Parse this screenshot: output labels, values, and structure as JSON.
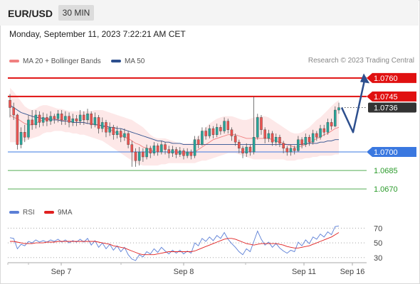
{
  "header": {
    "pair": "EUR/USD",
    "timeframe": "30 MIN"
  },
  "timestamp": "Monday, September 11, 2023 7:22:21 AM CET",
  "legend": {
    "bollinger": {
      "label": "MA 20 + Bollinger Bands",
      "color": "#f08080"
    },
    "ma50": {
      "label": "MA 50",
      "color": "#2d4f8e"
    }
  },
  "credit": "Research © 2023 Trading Central",
  "rsi_legend": {
    "rsi": {
      "label": "RSI",
      "color": "#5b7fd6"
    },
    "ma9": {
      "label": "9MA",
      "color": "#e02020"
    }
  },
  "chart_data": {
    "type": "candlestick",
    "y_range": [
      1.0662,
      1.0768
    ],
    "levels": [
      {
        "value": 1.076,
        "label": "1.0760",
        "color": "#e01010",
        "style": "resistance"
      },
      {
        "value": 1.0745,
        "label": "1.0745",
        "color": "#e01010",
        "style": "resistance"
      },
      {
        "value": 1.0736,
        "label": "1.0736",
        "color": "#333333",
        "style": "last-price"
      },
      {
        "value": 1.07,
        "label": "1.0700",
        "color": "#3a78e0",
        "style": "pivot"
      },
      {
        "value": 1.0685,
        "label": "1.0685",
        "color": "#2a9a2a",
        "style": "support"
      },
      {
        "value": 1.067,
        "label": "1.0670",
        "color": "#2a9a2a",
        "style": "support"
      }
    ],
    "x_ticks": [
      "Sep 7",
      "Sep 8",
      "Sep 11",
      "Sep 16"
    ],
    "candles": [
      [
        1.0742,
        1.0736,
        1.0747,
        1.0728
      ],
      [
        1.0736,
        1.073,
        1.074,
        1.0726
      ],
      [
        1.073,
        1.0706,
        1.0731,
        1.0702
      ],
      [
        1.0706,
        1.0716,
        1.072,
        1.0703
      ],
      [
        1.0716,
        1.0712,
        1.0722,
        1.0708
      ],
      [
        1.0712,
        1.0726,
        1.073,
        1.071
      ],
      [
        1.0726,
        1.0722,
        1.0734,
        1.0718
      ],
      [
        1.0722,
        1.073,
        1.0734,
        1.0719
      ],
      [
        1.073,
        1.0724,
        1.0733,
        1.072
      ],
      [
        1.0724,
        1.0728,
        1.0732,
        1.0721
      ],
      [
        1.0728,
        1.0725,
        1.0731,
        1.0721
      ],
      [
        1.0725,
        1.0729,
        1.0733,
        1.0722
      ],
      [
        1.0729,
        1.0727,
        1.0731,
        1.0723
      ],
      [
        1.0727,
        1.0731,
        1.0734,
        1.0724
      ],
      [
        1.0731,
        1.0726,
        1.0734,
        1.0722
      ],
      [
        1.0726,
        1.0729,
        1.0733,
        1.0722
      ],
      [
        1.0729,
        1.0724,
        1.0732,
        1.072
      ],
      [
        1.0724,
        1.0727,
        1.0731,
        1.0721
      ],
      [
        1.0727,
        1.0725,
        1.073,
        1.0721
      ],
      [
        1.0725,
        1.073,
        1.0734,
        1.0722
      ],
      [
        1.073,
        1.0726,
        1.0733,
        1.0722
      ],
      [
        1.0726,
        1.0731,
        1.0735,
        1.0723
      ],
      [
        1.0731,
        1.0722,
        1.0733,
        1.0719
      ],
      [
        1.0722,
        1.0728,
        1.0732,
        1.072
      ],
      [
        1.0728,
        1.0719,
        1.073,
        1.0715
      ],
      [
        1.0719,
        1.0724,
        1.0728,
        1.0716
      ],
      [
        1.0724,
        1.0716,
        1.0726,
        1.0712
      ],
      [
        1.0716,
        1.072,
        1.0724,
        1.0713
      ],
      [
        1.072,
        1.0714,
        1.0722,
        1.071
      ],
      [
        1.0714,
        1.0717,
        1.0721,
        1.0711
      ],
      [
        1.0717,
        1.0712,
        1.0719,
        1.0708
      ],
      [
        1.0712,
        1.0715,
        1.0719,
        1.0709
      ],
      [
        1.0715,
        1.0706,
        1.0717,
        1.0703
      ],
      [
        1.0706,
        1.07,
        1.0709,
        1.0688
      ],
      [
        1.07,
        1.0693,
        1.0703,
        1.0688
      ],
      [
        1.0693,
        1.07,
        1.0704,
        1.0689
      ],
      [
        1.07,
        1.0696,
        1.0703,
        1.0692
      ],
      [
        1.0696,
        1.0703,
        1.0706,
        1.0694
      ],
      [
        1.0703,
        1.0699,
        1.0705,
        1.0695
      ],
      [
        1.0699,
        1.0705,
        1.0708,
        1.0697
      ],
      [
        1.0705,
        1.07,
        1.0707,
        1.0697
      ],
      [
        1.07,
        1.0706,
        1.0709,
        1.0698
      ],
      [
        1.0706,
        1.0702,
        1.0708,
        1.0698
      ],
      [
        1.0702,
        1.0699,
        1.0705,
        1.0695
      ],
      [
        1.0699,
        1.0702,
        1.0705,
        1.0696
      ],
      [
        1.0702,
        1.0698,
        1.0704,
        1.0695
      ],
      [
        1.0698,
        1.0701,
        1.0704,
        1.0696
      ],
      [
        1.0701,
        1.0697,
        1.0703,
        1.0694
      ],
      [
        1.0697,
        1.07,
        1.0703,
        1.0695
      ],
      [
        1.07,
        1.0697,
        1.0702,
        1.0694
      ],
      [
        1.0697,
        1.071,
        1.0713,
        1.0695
      ],
      [
        1.071,
        1.0706,
        1.0713,
        1.0703
      ],
      [
        1.0706,
        1.0717,
        1.072,
        1.0705
      ],
      [
        1.0717,
        1.0713,
        1.072,
        1.071
      ],
      [
        1.0713,
        1.0719,
        1.0722,
        1.0711
      ],
      [
        1.0719,
        1.0714,
        1.0721,
        1.0711
      ],
      [
        1.0714,
        1.072,
        1.0723,
        1.0712
      ],
      [
        1.072,
        1.0717,
        1.0722,
        1.0714
      ],
      [
        1.0717,
        1.0725,
        1.0728,
        1.0715
      ],
      [
        1.0725,
        1.0718,
        1.0727,
        1.0715
      ],
      [
        1.0718,
        1.0713,
        1.072,
        1.0709
      ],
      [
        1.0713,
        1.0708,
        1.0715,
        1.0705
      ],
      [
        1.0708,
        1.0703,
        1.071,
        1.0699
      ],
      [
        1.0703,
        1.0699,
        1.0705,
        1.0695
      ],
      [
        1.0699,
        1.0704,
        1.0707,
        1.0696
      ],
      [
        1.0704,
        1.07,
        1.0706,
        1.0697
      ],
      [
        1.07,
        1.0712,
        1.0745,
        1.0698
      ],
      [
        1.0712,
        1.0728,
        1.0731,
        1.071
      ],
      [
        1.0728,
        1.0718,
        1.073,
        1.0714
      ],
      [
        1.0718,
        1.0711,
        1.072,
        1.0707
      ],
      [
        1.0711,
        1.0715,
        1.0718,
        1.0708
      ],
      [
        1.0715,
        1.0708,
        1.0717,
        1.0705
      ],
      [
        1.0708,
        1.0712,
        1.0715,
        1.0705
      ],
      [
        1.0712,
        1.0707,
        1.0714,
        1.0704
      ],
      [
        1.0707,
        1.0703,
        1.0709,
        1.0699
      ],
      [
        1.0703,
        1.07,
        1.0705,
        1.0697
      ],
      [
        1.07,
        1.0703,
        1.0706,
        1.0697
      ],
      [
        1.0703,
        1.0701,
        1.0705,
        1.0698
      ],
      [
        1.0701,
        1.071,
        1.0713,
        1.07
      ],
      [
        1.071,
        1.0706,
        1.0712,
        1.0703
      ],
      [
        1.0706,
        1.0712,
        1.0715,
        1.0704
      ],
      [
        1.0712,
        1.0708,
        1.0714,
        1.0705
      ],
      [
        1.0708,
        1.0715,
        1.0718,
        1.0706
      ],
      [
        1.0715,
        1.0712,
        1.0717,
        1.0709
      ],
      [
        1.0712,
        1.0719,
        1.0722,
        1.071
      ],
      [
        1.0719,
        1.0716,
        1.0722,
        1.0713
      ],
      [
        1.0716,
        1.0724,
        1.0727,
        1.0714
      ],
      [
        1.0724,
        1.0721,
        1.0727,
        1.0718
      ],
      [
        1.0721,
        1.0734,
        1.0737,
        1.072
      ],
      [
        1.0734,
        1.0736,
        1.074,
        1.0731
      ]
    ],
    "ma20_upper": [
      1.0752,
      1.0749,
      1.0745,
      1.0741,
      1.0737,
      1.0735,
      1.0734,
      1.0735,
      1.0737,
      1.0738,
      1.0738,
      1.0737,
      1.0736,
      1.0735,
      1.0735,
      1.0734,
      1.0733,
      1.0733,
      1.0733,
      1.0733,
      1.0733,
      1.0733,
      1.0733,
      1.0734,
      1.0734,
      1.0734,
      1.0733,
      1.0732,
      1.0731,
      1.073,
      1.0729,
      1.0728,
      1.0727,
      1.0726,
      1.0724,
      1.0722,
      1.072,
      1.0717,
      1.0714,
      1.0712,
      1.0711,
      1.0711,
      1.0711,
      1.071,
      1.0709,
      1.0708,
      1.0707,
      1.0707,
      1.0707,
      1.0707,
      1.071,
      1.0713,
      1.0716,
      1.072,
      1.0723,
      1.0725,
      1.0727,
      1.0728,
      1.0729,
      1.0729,
      1.0729,
      1.0728,
      1.0727,
      1.0726,
      1.0726,
      1.0727,
      1.0728,
      1.0729,
      1.0729,
      1.0729,
      1.0728,
      1.0726,
      1.0724,
      1.0722,
      1.072,
      1.0718,
      1.0716,
      1.0715,
      1.0715,
      1.0716,
      1.0718,
      1.072,
      1.0723,
      1.0726,
      1.0728,
      1.0731,
      1.0734,
      1.0737,
      1.074,
      1.0742
    ],
    "ma20_lower": [
      1.0708,
      1.0708,
      1.0708,
      1.0709,
      1.0709,
      1.071,
      1.0711,
      1.0712,
      1.0713,
      1.0715,
      1.0716,
      1.0716,
      1.0717,
      1.0717,
      1.0717,
      1.0716,
      1.0716,
      1.0715,
      1.0715,
      1.0714,
      1.0714,
      1.0713,
      1.0712,
      1.0711,
      1.071,
      1.0709,
      1.0707,
      1.0705,
      1.0703,
      1.0701,
      1.0699,
      1.0697,
      1.0695,
      1.0693,
      1.0691,
      1.069,
      1.0689,
      1.0689,
      1.0689,
      1.0689,
      1.0689,
      1.069,
      1.069,
      1.0691,
      1.0691,
      1.0691,
      1.0691,
      1.0691,
      1.0691,
      1.0691,
      1.0691,
      1.0692,
      1.0693,
      1.0693,
      1.0694,
      1.0695,
      1.0696,
      1.0697,
      1.0698,
      1.0699,
      1.0699,
      1.0699,
      1.0698,
      1.0697,
      1.0696,
      1.0695,
      1.0694,
      1.0694,
      1.0694,
      1.0694,
      1.0694,
      1.0694,
      1.0694,
      1.0694,
      1.0694,
      1.0693,
      1.0693,
      1.0693,
      1.0694,
      1.0694,
      1.0695,
      1.0695,
      1.0696,
      1.0696,
      1.0697,
      1.0697,
      1.0697,
      1.0697,
      1.0698,
      1.0698
    ],
    "ma20": [
      1.073,
      1.0728,
      1.0727,
      1.0725,
      1.0723,
      1.0722,
      1.0722,
      1.0723,
      1.0725,
      1.0726,
      1.0727,
      1.0727,
      1.0727,
      1.0726,
      1.0726,
      1.0725,
      1.0725,
      1.0724,
      1.0724,
      1.0724,
      1.0724,
      1.0723,
      1.0723,
      1.0722,
      1.0722,
      1.0721,
      1.072,
      1.0718,
      1.0717,
      1.0715,
      1.0714,
      1.0712,
      1.0711,
      1.0709,
      1.0707,
      1.0706,
      1.0704,
      1.0703,
      1.0702,
      1.07,
      1.07,
      1.07,
      1.07,
      1.07,
      1.07,
      1.07,
      1.0699,
      1.0699,
      1.0699,
      1.0699,
      1.07,
      1.0702,
      1.0704,
      1.0706,
      1.0708,
      1.071,
      1.0711,
      1.0712,
      1.0713,
      1.0714,
      1.0714,
      1.0714,
      1.0713,
      1.0712,
      1.0711,
      1.0711,
      1.0711,
      1.0711,
      1.0711,
      1.0711,
      1.0711,
      1.071,
      1.0709,
      1.0708,
      1.0707,
      1.0706,
      1.0705,
      1.0704,
      1.0704,
      1.0705,
      1.0706,
      1.0707,
      1.0709,
      1.0711,
      1.0712,
      1.0714,
      1.0715,
      1.0717,
      1.0719,
      1.072
    ],
    "ma50": [
      1.0738,
      1.0736,
      1.0734,
      1.0732,
      1.0731,
      1.073,
      1.0729,
      1.0728,
      1.0728,
      1.0727,
      1.0727,
      1.0726,
      1.0726,
      1.0726,
      1.0725,
      1.0725,
      1.0725,
      1.0724,
      1.0724,
      1.0724,
      1.0724,
      1.0723,
      1.0723,
      1.0722,
      1.0722,
      1.0721,
      1.0721,
      1.072,
      1.072,
      1.0719,
      1.0719,
      1.0718,
      1.0717,
      1.0716,
      1.0715,
      1.0714,
      1.0713,
      1.0712,
      1.0711,
      1.071,
      1.0709,
      1.0709,
      1.0708,
      1.0708,
      1.0707,
      1.0707,
      1.0707,
      1.0706,
      1.0706,
      1.0706,
      1.0706,
      1.0706,
      1.0706,
      1.0706,
      1.0706,
      1.0706,
      1.0706,
      1.0706,
      1.0706,
      1.0706,
      1.0706,
      1.0706,
      1.0706,
      1.0706,
      1.0706,
      1.0706,
      1.0706,
      1.0706,
      1.0706,
      1.0706,
      1.0706,
      1.0706,
      1.0706,
      1.0706,
      1.0706,
      1.0706,
      1.0706,
      1.0706,
      1.0706,
      1.0706,
      1.0707,
      1.0707,
      1.0707,
      1.0707,
      1.0708,
      1.0708,
      1.0709,
      1.0709,
      1.071,
      1.071
    ],
    "forecast": [
      1.0736,
      1.0716,
      1.0758
    ],
    "rsi_axis": {
      "range": [
        25,
        78
      ],
      "ticks": [
        70,
        50,
        30
      ]
    },
    "rsi": [
      57,
      56,
      42,
      48,
      46,
      52,
      50,
      54,
      51,
      53,
      51,
      54,
      52,
      55,
      51,
      54,
      50,
      53,
      51,
      55,
      51,
      56,
      47,
      53,
      44,
      50,
      42,
      48,
      40,
      46,
      38,
      44,
      34,
      28,
      26,
      34,
      31,
      38,
      35,
      42,
      37,
      44,
      39,
      35,
      40,
      36,
      40,
      35,
      39,
      36,
      50,
      46,
      56,
      52,
      58,
      53,
      60,
      56,
      64,
      55,
      49,
      44,
      38,
      34,
      42,
      38,
      52,
      66,
      55,
      47,
      51,
      44,
      49,
      43,
      39,
      36,
      40,
      38,
      51,
      46,
      54,
      49,
      58,
      55,
      62,
      58,
      65,
      61,
      72,
      73
    ],
    "rsi_ma9": [
      52,
      52,
      51,
      50,
      49,
      49,
      49,
      50,
      50,
      50,
      51,
      51,
      51,
      52,
      52,
      52,
      52,
      52,
      52,
      52,
      52,
      52,
      52,
      52,
      51,
      50,
      49,
      48,
      46,
      45,
      44,
      43,
      41,
      39,
      37,
      35,
      34,
      34,
      34,
      34,
      35,
      36,
      37,
      38,
      38,
      38,
      38,
      38,
      38,
      38,
      39,
      41,
      43,
      45,
      47,
      49,
      51,
      53,
      55,
      56,
      56,
      55,
      53,
      51,
      49,
      48,
      47,
      48,
      49,
      49,
      49,
      49,
      49,
      48,
      47,
      45,
      44,
      43,
      43,
      44,
      45,
      46,
      48,
      50,
      52,
      54,
      56,
      58,
      61,
      64
    ]
  }
}
